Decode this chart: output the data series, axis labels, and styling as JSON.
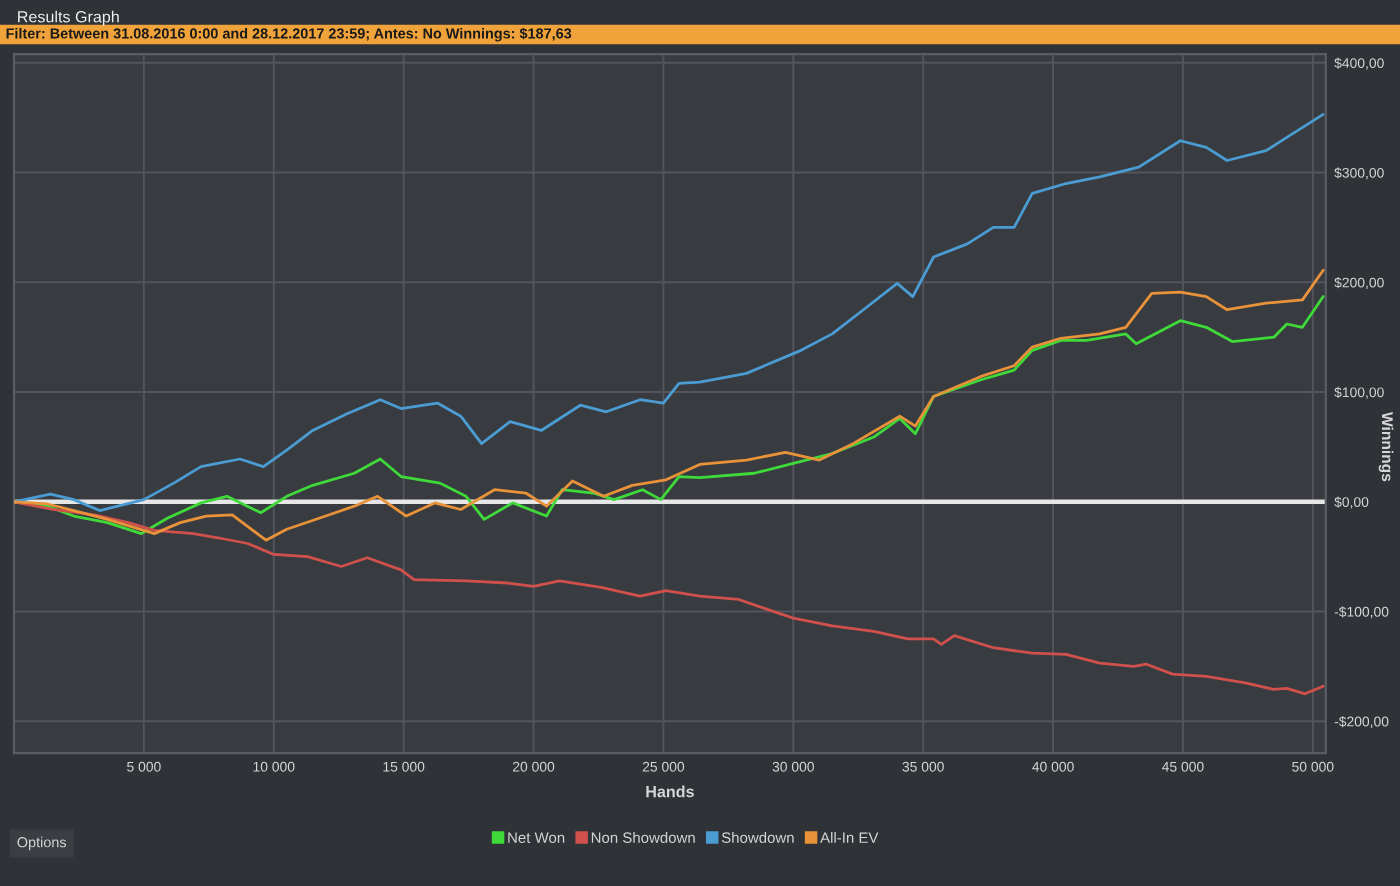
{
  "chart_data": {
    "type": "line",
    "title": "Results Graph",
    "subtitle": "Filter: Between 31.08.2016 0:00 and 28.12.2017 23:59; Antes: No Winnings: $187,63",
    "xlabel": "Hands",
    "ylabel": "Winnings",
    "annotations": [
      "Options"
    ],
    "series": [
      {
        "name": "Net Won",
        "color": "#3fd93a",
        "x": [
          0,
          1300,
          2300,
          3600,
          4900,
          5900,
          7200,
          8200,
          9500,
          10500,
          11500,
          13100,
          14100,
          14900,
          16400,
          17400,
          18100,
          19200,
          20500,
          21100,
          22300,
          23100,
          24200,
          24900,
          25600,
          26400,
          28500,
          30000,
          31500,
          33100,
          34100,
          34700,
          35400,
          37200,
          38500,
          39200,
          40300,
          41300,
          42800,
          43200,
          44900,
          45900,
          46900,
          48500,
          49000,
          49600,
          50400
        ],
        "values": [
          0,
          -4,
          -13,
          -19,
          -29,
          -15,
          -1,
          5,
          -10,
          5,
          15,
          26,
          39,
          23,
          17,
          5,
          -16,
          -1,
          -13,
          11,
          8,
          2,
          11,
          2,
          23,
          22,
          26,
          35,
          44,
          59,
          76,
          62,
          96,
          111,
          120,
          138,
          147,
          147,
          153,
          144,
          165,
          159,
          146,
          150,
          162,
          159,
          187
        ]
      },
      {
        "name": "Non Showdown",
        "color": "#d0504c",
        "x": [
          0,
          1500,
          3100,
          4400,
          5400,
          6900,
          7900,
          9000,
          10000,
          11300,
          12600,
          13600,
          14900,
          15400,
          17400,
          19000,
          20000,
          21000,
          22600,
          24100,
          25100,
          26400,
          27900,
          29000,
          30000,
          31500,
          33100,
          34400,
          35400,
          35700,
          36200,
          37700,
          39200,
          40500,
          41800,
          43100,
          43600,
          44600,
          45900,
          47400,
          48500,
          49000,
          49700,
          50400
        ],
        "values": [
          0,
          -7,
          -12,
          -19,
          -26,
          -29,
          -33,
          -38,
          -48,
          -50,
          -59,
          -51,
          -62,
          -71,
          -72,
          -74,
          -77,
          -72,
          -78,
          -86,
          -81,
          -86,
          -89,
          -98,
          -106,
          -113,
          -118,
          -125,
          -125,
          -130,
          -122,
          -133,
          -138,
          -139,
          -147,
          -150,
          -148,
          -157,
          -159,
          -165,
          -171,
          -170,
          -175,
          -168
        ]
      },
      {
        "name": "Showdown",
        "color": "#4b9cd3",
        "x": [
          0,
          1400,
          2300,
          3300,
          5000,
          6150,
          7200,
          8700,
          9600,
          10500,
          11500,
          12800,
          14100,
          14900,
          16300,
          17200,
          18000,
          19100,
          20300,
          21800,
          22800,
          24100,
          25000,
          25600,
          26400,
          28200,
          30300,
          31500,
          32700,
          34000,
          34600,
          35400,
          36700,
          37700,
          38500,
          39200,
          40500,
          41800,
          43300,
          44900,
          45900,
          46700,
          48200,
          49000,
          50400
        ],
        "values": [
          0,
          7,
          2,
          -8,
          2,
          17,
          32,
          39,
          32,
          47,
          65,
          80,
          93,
          85,
          90,
          78,
          53,
          73,
          65,
          88,
          82,
          93,
          90,
          108,
          109,
          117,
          138,
          153,
          175,
          199,
          187,
          223,
          235,
          250,
          250,
          281,
          290,
          296,
          305,
          329,
          323,
          311,
          320,
          332,
          353
        ]
      },
      {
        "name": "All-In EV",
        "color": "#e8923a",
        "x": [
          0,
          1300,
          2300,
          3600,
          5400,
          6400,
          7400,
          8400,
          9700,
          10500,
          12000,
          13100,
          14000,
          15100,
          16200,
          17200,
          18500,
          19700,
          20500,
          21500,
          22700,
          23800,
          25100,
          26400,
          28200,
          29700,
          31000,
          32300,
          34100,
          34700,
          35400,
          37200,
          38500,
          39200,
          40300,
          41800,
          42800,
          43800,
          44900,
          45900,
          46700,
          48200,
          49600,
          50400
        ],
        "values": [
          0,
          -2,
          -8,
          -16,
          -29,
          -19,
          -13,
          -12,
          -35,
          -25,
          -13,
          -4,
          5,
          -13,
          -1,
          -7,
          11,
          8,
          -4,
          19,
          5,
          15,
          20,
          34,
          38,
          45,
          38,
          53,
          78,
          69,
          96,
          114,
          124,
          141,
          149,
          153,
          159,
          190,
          191,
          187,
          175,
          181,
          184,
          211
        ]
      }
    ],
    "xlim": [
      0,
      50500
    ],
    "ylim": [
      -229,
      408
    ],
    "xticks": [
      {
        "value": 5000,
        "label": "5 000"
      },
      {
        "value": 10000,
        "label": "10 000"
      },
      {
        "value": 15000,
        "label": "15 000"
      },
      {
        "value": 20000,
        "label": "20 000"
      },
      {
        "value": 25000,
        "label": "25 000"
      },
      {
        "value": 30000,
        "label": "30 000"
      },
      {
        "value": 35000,
        "label": "35 000"
      },
      {
        "value": 40000,
        "label": "40 000"
      },
      {
        "value": 45000,
        "label": "45 000"
      },
      {
        "value": 50000,
        "label": "50 000"
      }
    ],
    "yticks": [
      {
        "value": -200,
        "label": "-$200,00"
      },
      {
        "value": -100,
        "label": "-$100,00"
      },
      {
        "value": 0,
        "label": "$0,00"
      },
      {
        "value": 100,
        "label": "$100,00"
      },
      {
        "value": 200,
        "label": "$200,00"
      },
      {
        "value": 300,
        "label": "$300,00"
      },
      {
        "value": 400,
        "label": "$400,00"
      }
    ],
    "grid": true,
    "legend": "bottom",
    "ref_lines": [
      {
        "axis": "y",
        "value": 0,
        "color": "#e6e6e6"
      }
    ]
  }
}
